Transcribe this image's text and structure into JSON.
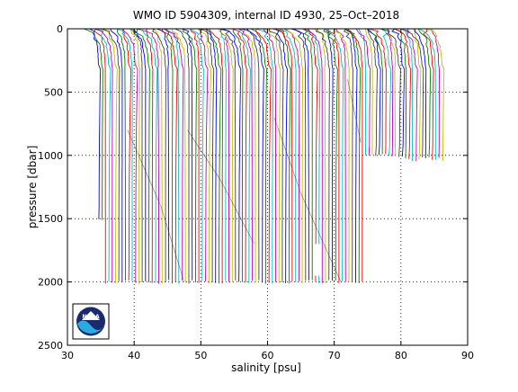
{
  "chart_data": {
    "type": "line",
    "title": "WMO ID 5904309, internal ID 4930, 25–Oct–2018",
    "xlabel": "salinity [psu]",
    "ylabel": "pressure [dbar]",
    "xlim": [
      30,
      90
    ],
    "ylim": [
      0,
      2500
    ],
    "y_reversed": true,
    "x_ticks": [
      30,
      40,
      50,
      60,
      70,
      80,
      90
    ],
    "y_ticks": [
      0,
      500,
      1000,
      1500,
      2000,
      2500
    ],
    "x_tick_labels": [
      "30",
      "40",
      "50",
      "60",
      "70",
      "80",
      "90"
    ],
    "y_tick_labels": [
      "0",
      "500",
      "1000",
      "1500",
      "2000",
      "2500"
    ],
    "grid": true,
    "grid_style": "dotted",
    "description_of_series": "Waterfall of successive salinity profiles, each offset by 0.5 psu; profiles cycle through colors",
    "profile_offset_psu": 0.5,
    "profile_colors": [
      "#0000ff",
      "#008000",
      "#ff0000",
      "#00bfbf",
      "#bf00bf",
      "#bfbf00",
      "#404040"
    ],
    "profiles_start_x": 34.7,
    "profiles_end_x": 86.3,
    "segments": [
      {
        "x_start": 34.7,
        "x_end": 35.6,
        "max_pressure": 1500
      },
      {
        "x_start": 35.6,
        "x_end": 74.2,
        "max_pressure": 2000
      },
      {
        "x_start": 74.3,
        "x_end": 80.2,
        "max_pressure": 1000
      },
      {
        "x_start": 80.3,
        "x_end": 86.3,
        "max_pressure": 1030
      }
    ],
    "logo": "NOAA"
  },
  "logo": {
    "text": "NOAA",
    "color_dark": "#1a2a6c",
    "color_light": "#29abe2"
  }
}
